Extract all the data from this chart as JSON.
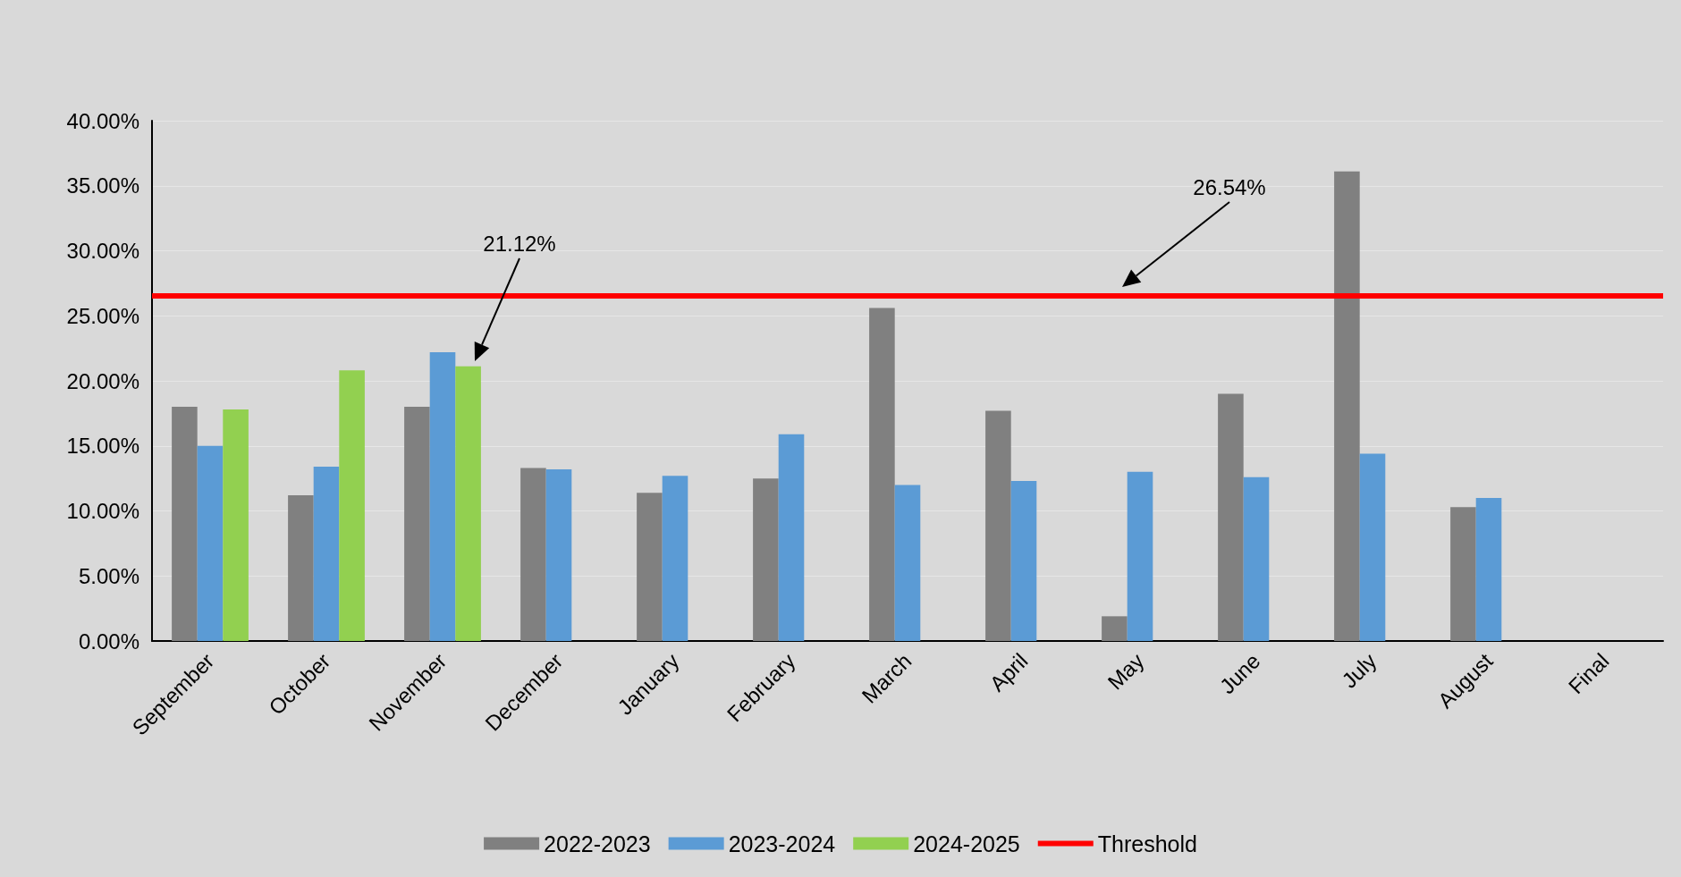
{
  "chart_data": {
    "type": "bar",
    "categories": [
      "September",
      "October",
      "November",
      "December",
      "January",
      "February",
      "March",
      "April",
      "May",
      "June",
      "July",
      "August",
      "Final"
    ],
    "series": [
      {
        "name": "2022-2023",
        "color": "#808080",
        "values": [
          18.0,
          11.2,
          18.0,
          13.3,
          11.4,
          12.5,
          25.6,
          17.7,
          1.9,
          19.0,
          36.1,
          10.3,
          null
        ]
      },
      {
        "name": "2023-2024",
        "color": "#5b9bd5",
        "values": [
          15.0,
          13.4,
          22.2,
          13.2,
          12.7,
          15.9,
          12.0,
          12.3,
          13.0,
          12.6,
          14.4,
          11.0,
          null
        ]
      },
      {
        "name": "2024-2025",
        "color": "#92d050",
        "values": [
          17.8,
          20.8,
          21.12,
          null,
          null,
          null,
          null,
          null,
          null,
          null,
          null,
          null,
          null
        ]
      }
    ],
    "ref_lines": [
      {
        "axis": "y",
        "value": 26.54,
        "label": "Threshold",
        "color": "#ff0000"
      }
    ],
    "annotations": [
      "21.12%",
      "26.54%"
    ],
    "ylim": [
      0,
      40
    ],
    "yticks": [
      {
        "value": 0,
        "label": "0.00%"
      },
      {
        "value": 5,
        "label": "5.00%"
      },
      {
        "value": 10,
        "label": "10.00%"
      },
      {
        "value": 15,
        "label": "15.00%"
      },
      {
        "value": 20,
        "label": "20.00%"
      },
      {
        "value": 25,
        "label": "25.00%"
      },
      {
        "value": 30,
        "label": "30.00%"
      },
      {
        "value": 35,
        "label": "35.00%"
      },
      {
        "value": 40,
        "label": "40.00%"
      }
    ],
    "grid": "y",
    "legend": "bottom"
  }
}
